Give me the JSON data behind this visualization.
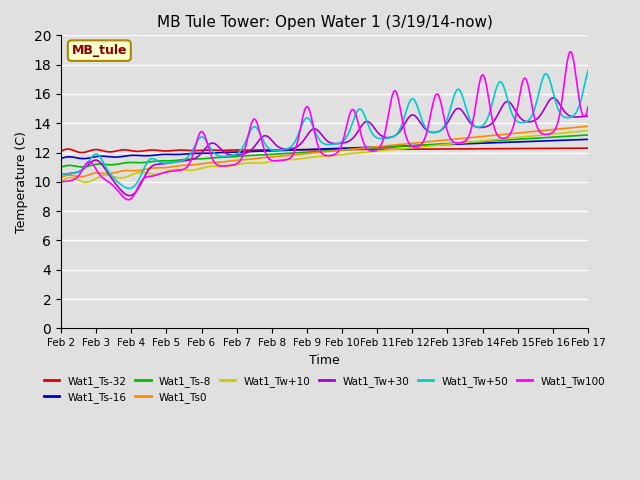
{
  "title": "MB Tule Tower: Open Water 1 (3/19/14-now)",
  "xlabel": "Time",
  "ylabel": "Temperature (C)",
  "ylim": [
    0,
    20
  ],
  "yticks": [
    0,
    2,
    4,
    6,
    8,
    10,
    12,
    14,
    16,
    18,
    20
  ],
  "x_labels": [
    "Feb 2",
    "Feb 3",
    "Feb 4",
    "Feb 5",
    "Feb 6",
    "Feb 7",
    "Feb 8",
    "Feb 9",
    "Feb 10",
    "Feb 11",
    "Feb 12",
    "Feb 13",
    "Feb 14",
    "Feb 15",
    "Feb 16",
    "Feb 17"
  ],
  "bg_color": "#e0e0e0",
  "grid_color": "#ffffff",
  "series": [
    {
      "name": "Wat1_Ts-32",
      "color": "#dd0000"
    },
    {
      "name": "Wat1_Ts-16",
      "color": "#0000cc"
    },
    {
      "name": "Wat1_Ts-8",
      "color": "#00bb00"
    },
    {
      "name": "Wat1_Ts0",
      "color": "#ff8800"
    },
    {
      "name": "Wat1_Tw+10",
      "color": "#cccc00"
    },
    {
      "name": "Wat1_Tw+30",
      "color": "#aa00cc"
    },
    {
      "name": "Wat1_Tw+50",
      "color": "#00cccc"
    },
    {
      "name": "Wat1_Tw100",
      "color": "#ff00ff"
    }
  ],
  "legend_box": {
    "text": "MB_tule",
    "bg": "#ffffcc",
    "edge": "#aa8800",
    "text_color": "#880000"
  }
}
